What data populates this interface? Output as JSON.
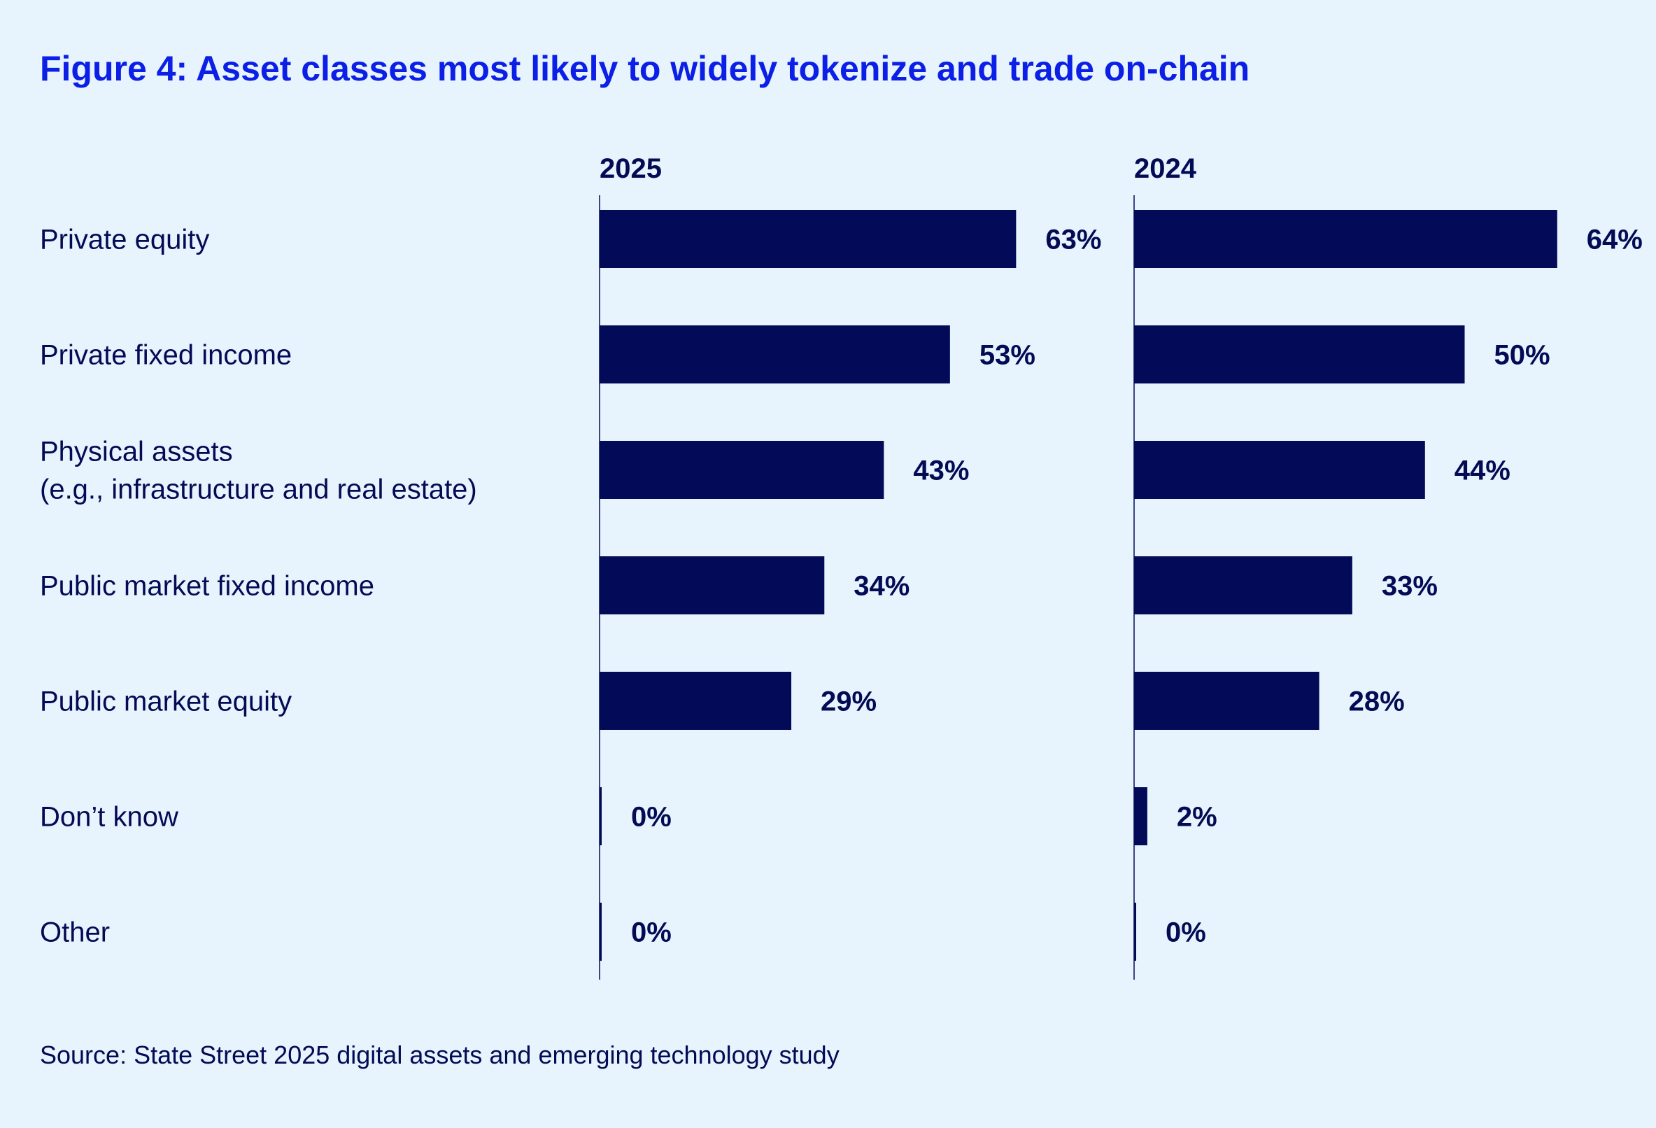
{
  "chart_data": {
    "type": "bar",
    "orientation": "horizontal",
    "title": "Figure 4: Asset classes most likely to widely tokenize and trade on-chain",
    "categories": [
      [
        "Private equity"
      ],
      [
        "Private fixed income"
      ],
      [
        "Physical assets",
        "(e.g., infrastructure and real estate)"
      ],
      [
        "Public market fixed income"
      ],
      [
        "Public market equity"
      ],
      [
        "Don’t know"
      ],
      [
        "Other"
      ]
    ],
    "series": [
      {
        "name": "2025",
        "values": [
          63,
          53,
          43,
          34,
          29,
          0,
          0
        ]
      },
      {
        "name": "2024",
        "values": [
          64,
          50,
          44,
          33,
          28,
          2,
          0
        ]
      }
    ],
    "value_suffix": "%",
    "xlim": [
      0,
      70
    ],
    "grid": false,
    "bar_color": "#030a57",
    "title_color": "#0b1fe6",
    "background": "#e7f4fd",
    "source": "Source: State Street 2025 digital assets and emerging technology study"
  }
}
